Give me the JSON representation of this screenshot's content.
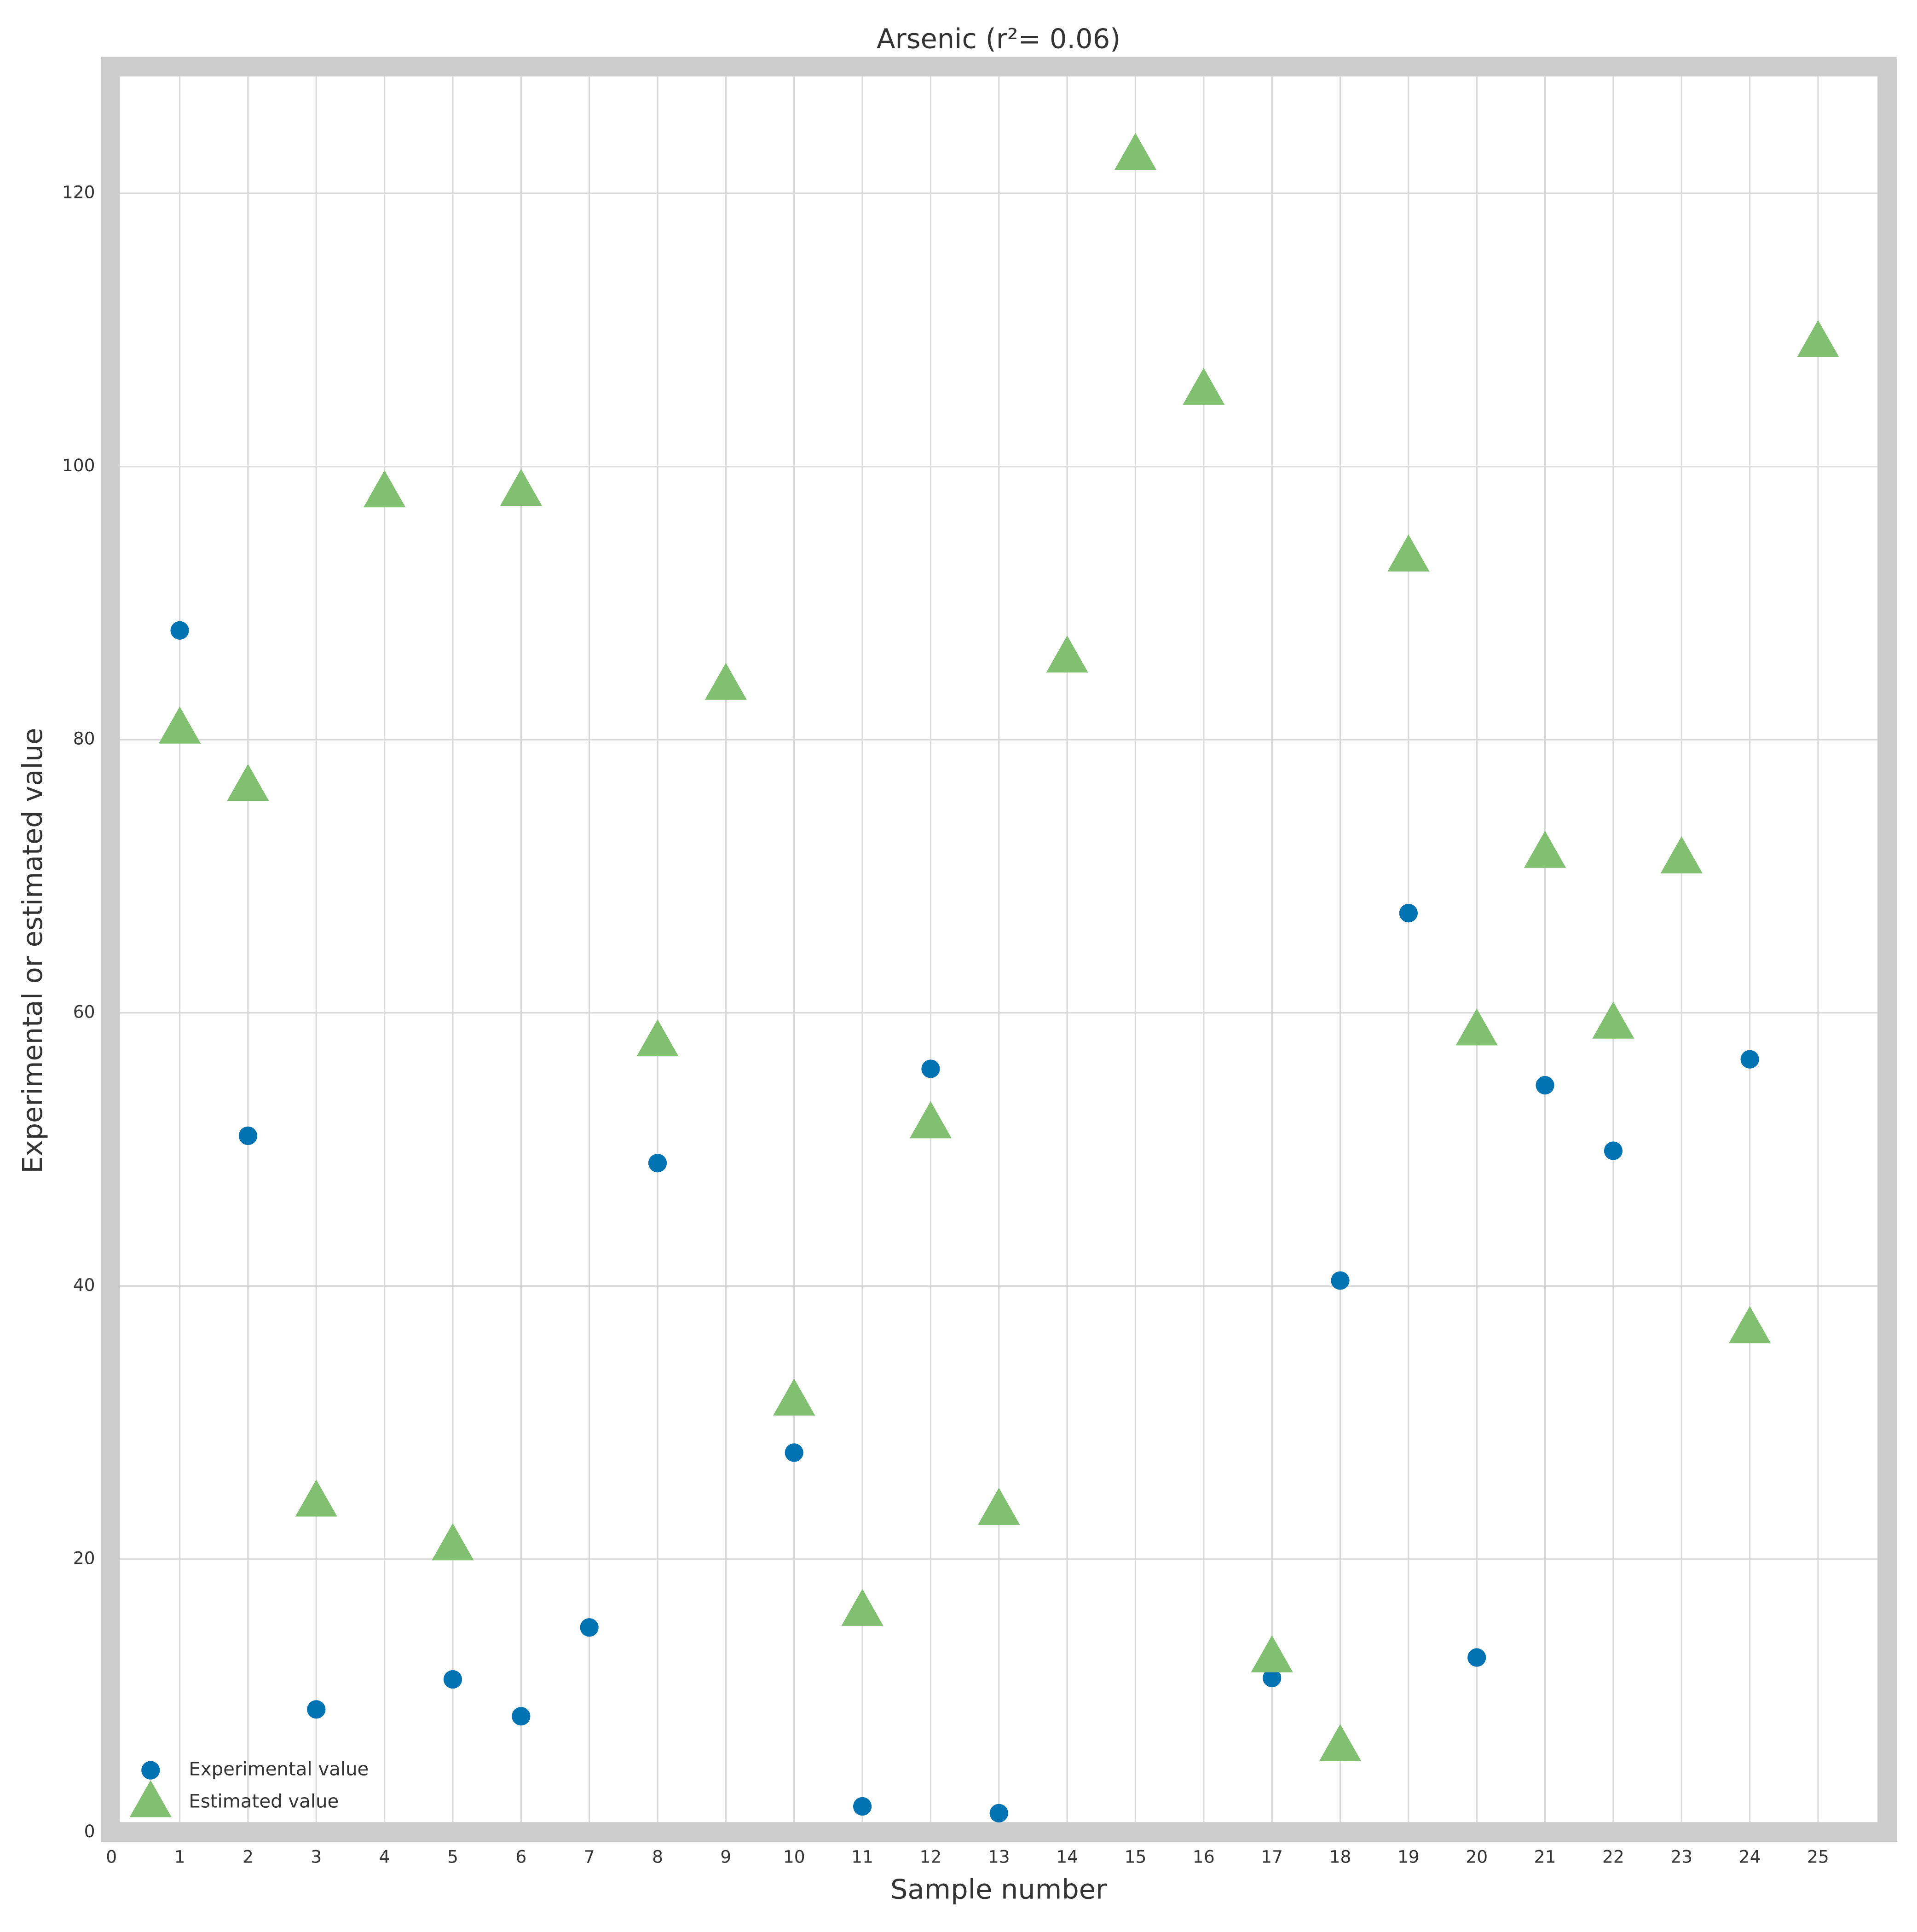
{
  "chart_data": {
    "type": "scatter",
    "title": "Arsenic (r²= 0.06)",
    "xlabel": "Sample number",
    "ylabel": "Experimental or estimated value",
    "x": [
      1,
      2,
      3,
      4,
      5,
      6,
      7,
      8,
      9,
      10,
      11,
      12,
      13,
      14,
      15,
      16,
      17,
      18,
      19,
      20,
      21,
      22,
      23,
      24,
      25
    ],
    "series": [
      {
        "name": "Experimental value",
        "color": "#0173b2",
        "marker": "circle",
        "values": [
          88,
          51,
          9,
          null,
          11.2,
          8.5,
          15,
          49,
          null,
          27.8,
          1.9,
          55.9,
          1.4,
          null,
          null,
          null,
          11.3,
          40.4,
          67.3,
          12.8,
          54.7,
          49.9,
          null,
          56.6,
          null
        ]
      },
      {
        "name": "Estimated value",
        "color": "#80c070",
        "marker": "triangle",
        "values": [
          80.8,
          76.6,
          24.2,
          98.1,
          21.0,
          98.2,
          null,
          57.9,
          84.0,
          31.6,
          16.2,
          51.9,
          23.6,
          86.0,
          122.8,
          105.6,
          12.8,
          6.3,
          93.4,
          58.7,
          71.7,
          59.2,
          71.3,
          36.9,
          109.1
        ]
      }
    ],
    "xlim": [
      -0.15,
      26.16
    ],
    "ylim": [
      -0.7,
      130
    ],
    "xticks": [
      0,
      1,
      2,
      3,
      4,
      5,
      6,
      7,
      8,
      9,
      10,
      11,
      12,
      13,
      14,
      15,
      16,
      17,
      18,
      19,
      20,
      21,
      22,
      23,
      24,
      25
    ],
    "yticks": [
      0,
      20,
      40,
      60,
      80,
      100,
      120
    ],
    "grid": true,
    "legend": "lower left"
  }
}
